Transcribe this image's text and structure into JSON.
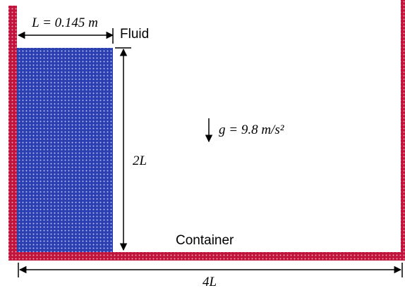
{
  "labels": {
    "length": "L = 0.145 m",
    "fluid": "Fluid",
    "height": "2L",
    "gravity": "g = 9.8 m/s²",
    "container": "Container",
    "width": "4L"
  }
}
